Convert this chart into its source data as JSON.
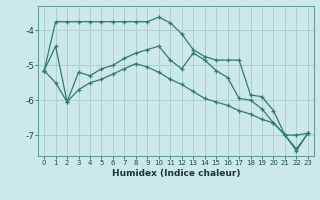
{
  "title": "",
  "xlabel": "Humidex (Indice chaleur)",
  "bg_color": "#cce8e8",
  "grid_color": "#aacccc",
  "line_color": "#2e7d6e",
  "xlim": [
    -0.5,
    23.5
  ],
  "ylim": [
    -7.6,
    -3.3
  ],
  "yticks": [
    -7,
    -6,
    -5,
    -4
  ],
  "xticks": [
    0,
    1,
    2,
    3,
    4,
    5,
    6,
    7,
    8,
    9,
    10,
    11,
    12,
    13,
    14,
    15,
    16,
    17,
    18,
    19,
    20,
    21,
    22,
    23
  ],
  "line1_y": [
    -5.15,
    -3.75,
    -3.75,
    -3.75,
    -3.75,
    -3.75,
    -3.75,
    -3.75,
    -3.75,
    -3.75,
    -3.62,
    -3.78,
    -4.1,
    -4.55,
    -4.75,
    -4.85,
    -4.85,
    -4.85,
    -5.85,
    -5.9,
    -6.3,
    -7.0,
    -7.0,
    -6.95
  ],
  "line2_y": [
    -5.15,
    -4.45,
    -6.05,
    -5.2,
    -5.3,
    -5.1,
    -5.0,
    -4.8,
    -4.65,
    -4.55,
    -4.45,
    -4.85,
    -5.1,
    -4.65,
    -4.85,
    -5.15,
    -5.35,
    -5.95,
    -6.0,
    -6.25,
    -6.65,
    -7.0,
    -7.4,
    -6.95
  ],
  "line3_y": [
    -5.15,
    -5.5,
    -6.05,
    -5.7,
    -5.5,
    -5.4,
    -5.25,
    -5.1,
    -4.95,
    -5.05,
    -5.2,
    -5.4,
    -5.55,
    -5.75,
    -5.95,
    -6.05,
    -6.15,
    -6.3,
    -6.4,
    -6.55,
    -6.65,
    -7.0,
    -7.45,
    -6.95
  ]
}
